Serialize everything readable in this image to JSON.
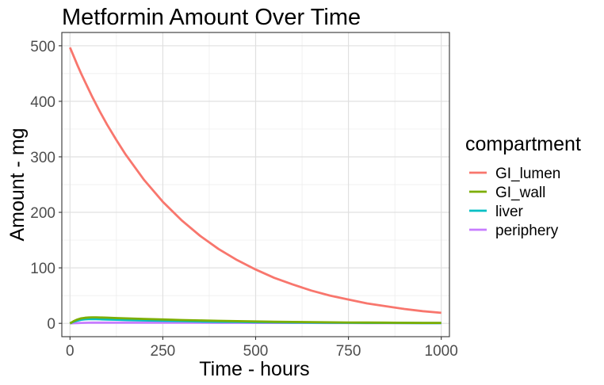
{
  "chart_data": {
    "type": "line",
    "title": "Metformin Amount Over Time",
    "xlabel": "Time - hours",
    "ylabel": "Amount - mg",
    "xlim": [
      -22,
      1022
    ],
    "ylim": [
      -24,
      524
    ],
    "x_ticks": [
      0,
      250,
      500,
      750,
      1000
    ],
    "y_ticks": [
      0,
      100,
      200,
      300,
      400,
      500
    ],
    "grid": true,
    "legend": {
      "title": "compartment",
      "position": "right"
    },
    "x": [
      0,
      10,
      20,
      30,
      40,
      50,
      60,
      70,
      80,
      100,
      125,
      150,
      200,
      250,
      300,
      350,
      400,
      450,
      500,
      550,
      600,
      650,
      700,
      750,
      800,
      850,
      900,
      950,
      1000
    ],
    "series": [
      {
        "name": "GI_lumen",
        "color": "#F8766D",
        "values": [
          497,
          481,
          465,
          450,
          436,
          422,
          408,
          395,
          382,
          358,
          330,
          304,
          258,
          219,
          186,
          158,
          134,
          114,
          97,
          82,
          70,
          59,
          50,
          43,
          36,
          31,
          26,
          22,
          19
        ]
      },
      {
        "name": "GI_wall",
        "color": "#7CAE00",
        "values": [
          0,
          4,
          7,
          9,
          10,
          10.5,
          10.8,
          10.8,
          10.6,
          10.2,
          9.6,
          9,
          8,
          7,
          6,
          5.2,
          4.5,
          3.9,
          3.4,
          2.9,
          2.5,
          2.2,
          1.9,
          1.6,
          1.4,
          1.2,
          1,
          0.9,
          0.8
        ]
      },
      {
        "name": "liver",
        "color": "#00BFC4",
        "values": [
          0,
          3,
          5,
          6.5,
          7.2,
          7.5,
          7.6,
          7.5,
          7.4,
          7,
          6.5,
          6,
          5.2,
          4.5,
          3.9,
          3.3,
          2.9,
          2.5,
          2.1,
          1.8,
          1.6,
          1.4,
          1.2,
          1,
          0.9,
          0.8,
          0.7,
          0.6,
          0.5
        ]
      },
      {
        "name": "periphery",
        "color": "#C77CFF",
        "values": [
          0,
          0.3,
          0.6,
          0.8,
          1,
          1.1,
          1.2,
          1.3,
          1.3,
          1.3,
          1.3,
          1.3,
          1.2,
          1.2,
          1.1,
          1.1,
          1,
          1,
          0.9,
          0.9,
          0.8,
          0.8,
          0.7,
          0.7,
          0.6,
          0.6,
          0.6,
          0.5,
          0.5
        ]
      }
    ]
  }
}
